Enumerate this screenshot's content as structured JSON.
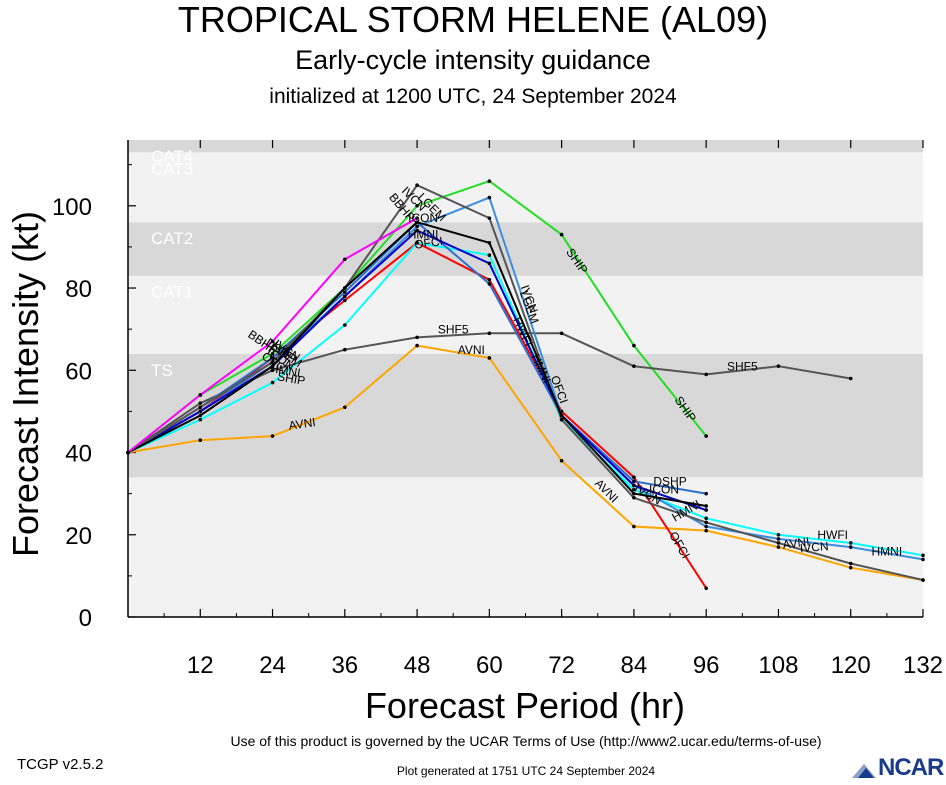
{
  "header": {
    "title": "TROPICAL STORM HELENE (AL09)",
    "subtitle": "Early-cycle intensity guidance",
    "init": "initialized at 1200 UTC, 24 September 2024"
  },
  "footer": {
    "terms": "Use of this product is governed by the UCAR Terms of Use (http://www2.ucar.edu/terms-of-use)",
    "version": "TCGP v2.5.2",
    "generated": "Plot generated at 1751 UTC   24 September 2024",
    "logo": "NCAR",
    "logo_color": "#1a3a8a"
  },
  "chart_data": {
    "type": "line",
    "title": "TROPICAL STORM HELENE (AL09)",
    "xlabel": "Forecast Period (hr)",
    "ylabel": "Forecast Intensity (kt)",
    "xlim": [
      0,
      132
    ],
    "ylim": [
      0,
      116
    ],
    "xticks": [
      12,
      24,
      36,
      48,
      60,
      72,
      84,
      96,
      108,
      120,
      132
    ],
    "yticks": [
      0,
      20,
      40,
      60,
      80,
      100
    ],
    "bands": [
      {
        "label": "TS",
        "from": 34,
        "to": 64,
        "color": "#d8d8d8"
      },
      {
        "label": "CAT1",
        "from": 64,
        "to": 83,
        "color": "#f2f2f2"
      },
      {
        "label": "CAT2",
        "from": 83,
        "to": 96,
        "color": "#d8d8d8"
      },
      {
        "label": "CAT3",
        "from": 96,
        "to": 113,
        "color": "#f2f2f2"
      },
      {
        "label": "CAT4",
        "from": 113,
        "to": 116,
        "color": "#d8d8d8"
      }
    ],
    "series": [
      {
        "name": "SHIP",
        "color": "#22dd22",
        "x": [
          0,
          12,
          24,
          36,
          48,
          60,
          72,
          84,
          96
        ],
        "y": [
          40,
          54,
          64,
          80,
          100,
          106,
          93,
          66,
          44
        ]
      },
      {
        "name": "SHF5",
        "color": "#555555",
        "x": [
          0,
          12,
          24,
          36,
          48,
          60,
          72,
          84,
          96,
          108,
          120
        ],
        "y": [
          40,
          52,
          60,
          65,
          68,
          69,
          69,
          61,
          59,
          61,
          58
        ]
      },
      {
        "name": "AVNI",
        "color": "#ffa500",
        "x": [
          0,
          12,
          24,
          36,
          48,
          60,
          72,
          84,
          96,
          108,
          120,
          132
        ],
        "y": [
          40,
          43,
          44,
          51,
          66,
          63,
          38,
          22,
          21,
          17,
          12,
          9
        ]
      },
      {
        "name": "OFCI",
        "color": "#ff0000",
        "x": [
          0,
          12,
          24,
          36,
          48,
          60,
          72,
          84,
          96
        ],
        "y": [
          40,
          50,
          63,
          77,
          91,
          82,
          50,
          34,
          7
        ]
      },
      {
        "name": "HWFI",
        "color": "#00ffff",
        "x": [
          0,
          12,
          24,
          36,
          48,
          60,
          72,
          84,
          96,
          108,
          120,
          132
        ],
        "y": [
          40,
          48,
          57,
          71,
          91,
          88,
          48,
          31,
          24,
          20,
          18,
          15
        ]
      },
      {
        "name": "HMNI",
        "color": "#3a8ee0",
        "x": [
          0,
          12,
          24,
          36,
          48,
          60,
          72,
          84,
          96,
          108,
          120,
          132
        ],
        "y": [
          40,
          50,
          62,
          78,
          95,
          102,
          49,
          32,
          22,
          19,
          17,
          14
        ]
      },
      {
        "name": "DSHP",
        "color": "#2a6fcc",
        "x": [
          0,
          12,
          24,
          36,
          48,
          60,
          72,
          84,
          96
        ],
        "y": [
          40,
          51,
          63,
          79,
          96,
          81,
          49,
          33,
          30
        ]
      },
      {
        "name": "LGEM",
        "color": "#0000cc",
        "x": [
          0,
          12,
          24,
          36,
          48,
          60,
          72,
          84,
          96
        ],
        "y": [
          40,
          50,
          61,
          78,
          94,
          86,
          49,
          32,
          26
        ]
      },
      {
        "name": "IVCN",
        "color": "#555555",
        "x": [
          0,
          12,
          24,
          36,
          48,
          60,
          72,
          84,
          96,
          108,
          120,
          132
        ],
        "y": [
          40,
          51,
          62,
          80,
          105,
          97,
          48,
          29,
          23,
          18,
          13,
          9
        ]
      },
      {
        "name": "ICON",
        "color": "#000000",
        "x": [
          0,
          12,
          24,
          36,
          48,
          60,
          72,
          84,
          96
        ],
        "y": [
          40,
          49,
          61,
          80,
          96,
          91,
          49,
          30,
          27
        ]
      },
      {
        "name": "BBHP",
        "color": "#ff00ff",
        "x": [
          0,
          12,
          24,
          36,
          48
        ],
        "y": [
          40,
          54,
          67,
          87,
          97
        ]
      }
    ],
    "labels": [
      {
        "text": "SHIP",
        "x": 74,
        "y": 86,
        "angle": 55
      },
      {
        "text": "SHIP",
        "x": 92,
        "y": 50,
        "angle": 55
      },
      {
        "text": "SHF5",
        "x": 54,
        "y": 69,
        "angle": 0
      },
      {
        "text": "SHF5",
        "x": 102,
        "y": 60,
        "angle": 0
      },
      {
        "text": "AVNI",
        "x": 29,
        "y": 46,
        "angle": -8
      },
      {
        "text": "AVNI",
        "x": 57,
        "y": 64,
        "angle": 0
      },
      {
        "text": "AVNI",
        "x": 79,
        "y": 30,
        "angle": 45
      },
      {
        "text": "AVNI",
        "x": 111,
        "y": 17,
        "angle": -8
      },
      {
        "text": "OFCI",
        "x": 50,
        "y": 90,
        "angle": -8
      },
      {
        "text": "OFCI",
        "x": 91,
        "y": 17,
        "angle": 60
      },
      {
        "text": "OFCI",
        "x": 71,
        "y": 55,
        "angle": 70
      },
      {
        "text": "OFCI",
        "x": 24,
        "y": 61,
        "angle": 35
      },
      {
        "text": "HWFI",
        "x": 65,
        "y": 69,
        "angle": 65
      },
      {
        "text": "HWFI",
        "x": 117,
        "y": 19,
        "angle": 0
      },
      {
        "text": "HMNI",
        "x": 49,
        "y": 92,
        "angle": 0
      },
      {
        "text": "HMNI",
        "x": 126,
        "y": 15,
        "angle": 0
      },
      {
        "text": "HMNI",
        "x": 93,
        "y": 25,
        "angle": -30
      },
      {
        "text": "HMNI",
        "x": 68,
        "y": 60,
        "angle": 65
      },
      {
        "text": "HMNI",
        "x": 26,
        "y": 59,
        "angle": 10
      },
      {
        "text": "DSHP",
        "x": 90,
        "y": 32,
        "angle": 0
      },
      {
        "text": "DSHP",
        "x": 25,
        "y": 64,
        "angle": 35
      },
      {
        "text": "LGEM",
        "x": 66,
        "y": 75,
        "angle": 70
      },
      {
        "text": "LGEM",
        "x": 50,
        "y": 99,
        "angle": 45
      },
      {
        "text": "LGEM",
        "x": 26,
        "y": 63,
        "angle": 35
      },
      {
        "text": "IVCN",
        "x": 114,
        "y": 16,
        "angle": -5
      },
      {
        "text": "IVCN",
        "x": 66,
        "y": 77,
        "angle": 70
      },
      {
        "text": "IVCN",
        "x": 86,
        "y": 29,
        "angle": 30
      },
      {
        "text": "IVCN",
        "x": 47,
        "y": 101,
        "angle": 45
      },
      {
        "text": "IVCN",
        "x": 26,
        "y": 64,
        "angle": 35
      },
      {
        "text": "ICON",
        "x": 89,
        "y": 30,
        "angle": 0
      },
      {
        "text": "ICON",
        "x": 49,
        "y": 96,
        "angle": 0
      },
      {
        "text": "ICON",
        "x": 25,
        "y": 62,
        "angle": 35
      },
      {
        "text": "BBHP",
        "x": 22,
        "y": 66,
        "angle": 35
      },
      {
        "text": "BBHP",
        "x": 45,
        "y": 99,
        "angle": 50
      },
      {
        "text": "SHIP",
        "x": 27,
        "y": 57,
        "angle": 10
      }
    ]
  }
}
